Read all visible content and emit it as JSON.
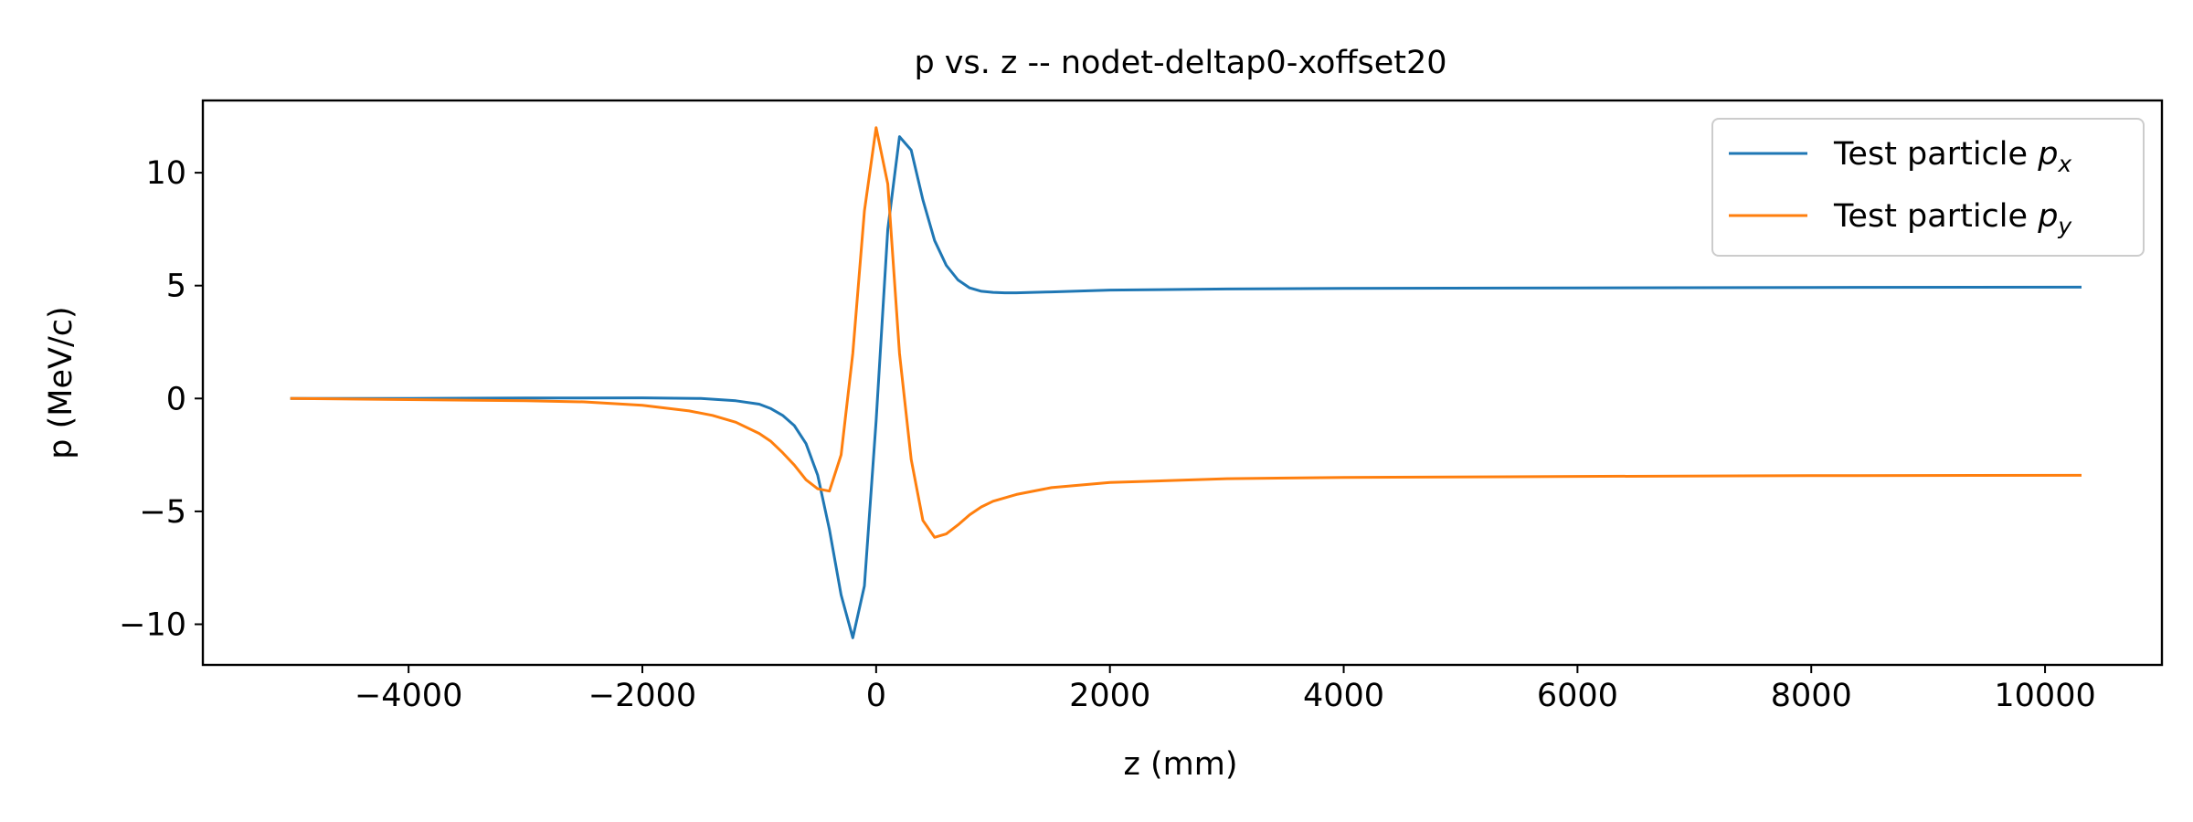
{
  "chart_data": {
    "type": "line",
    "title": "p vs. z -- nodet-deltap0-xoffset20",
    "xlabel": "z (mm)",
    "ylabel": "p (MeV/c)",
    "xlim": [
      -5760,
      11000
    ],
    "ylim": [
      -11.8,
      13.2
    ],
    "xticks": [
      -4000,
      -2000,
      0,
      2000,
      4000,
      6000,
      8000,
      10000
    ],
    "xtick_labels": [
      "−4000",
      "−2000",
      "0",
      "2000",
      "4000",
      "6000",
      "8000",
      "10000"
    ],
    "yticks": [
      -10,
      -5,
      0,
      5,
      10
    ],
    "ytick_labels": [
      "−10",
      "−5",
      "0",
      "5",
      "10"
    ],
    "grid": false,
    "legend_position": "top-right",
    "series": [
      {
        "name": "Test particle p_x",
        "legend_text": "Test particle ",
        "legend_symbol": "p",
        "legend_subscript": "x",
        "color": "#1f77b4",
        "x": [
          -5000,
          -4000,
          -3000,
          -2000,
          -1500,
          -1200,
          -1000,
          -900,
          -800,
          -700,
          -600,
          -500,
          -400,
          -300,
          -200,
          -100,
          0,
          100,
          200,
          300,
          400,
          500,
          600,
          700,
          800,
          900,
          1000,
          1100,
          1200,
          1500,
          2000,
          3000,
          4000,
          6000,
          8000,
          10300
        ],
        "y": [
          0,
          0,
          0.02,
          0.03,
          0.0,
          -0.1,
          -0.25,
          -0.45,
          -0.75,
          -1.2,
          -2.0,
          -3.4,
          -5.8,
          -8.7,
          -10.6,
          -8.3,
          -1.0,
          7.5,
          11.6,
          11.0,
          8.8,
          7.0,
          5.9,
          5.25,
          4.9,
          4.75,
          4.7,
          4.68,
          4.68,
          4.72,
          4.8,
          4.85,
          4.88,
          4.9,
          4.92,
          4.93
        ]
      },
      {
        "name": "Test particle p_y",
        "legend_text": "Test particle ",
        "legend_symbol": "p",
        "legend_subscript": "y",
        "color": "#ff7f0e",
        "x": [
          -5000,
          -4000,
          -3000,
          -2500,
          -2000,
          -1600,
          -1400,
          -1200,
          -1000,
          -900,
          -800,
          -700,
          -600,
          -500,
          -400,
          -300,
          -200,
          -100,
          0,
          100,
          200,
          300,
          400,
          500,
          600,
          700,
          800,
          900,
          1000,
          1200,
          1500,
          2000,
          3000,
          4000,
          6000,
          8000,
          10300
        ],
        "y": [
          0,
          -0.05,
          -0.1,
          -0.15,
          -0.3,
          -0.55,
          -0.75,
          -1.05,
          -1.55,
          -1.9,
          -2.4,
          -2.95,
          -3.6,
          -4.0,
          -4.1,
          -2.5,
          2.0,
          8.3,
          12.0,
          9.5,
          2.0,
          -2.7,
          -5.4,
          -6.15,
          -6.0,
          -5.6,
          -5.15,
          -4.8,
          -4.55,
          -4.25,
          -3.95,
          -3.72,
          -3.55,
          -3.5,
          -3.45,
          -3.42,
          -3.4
        ]
      }
    ]
  }
}
